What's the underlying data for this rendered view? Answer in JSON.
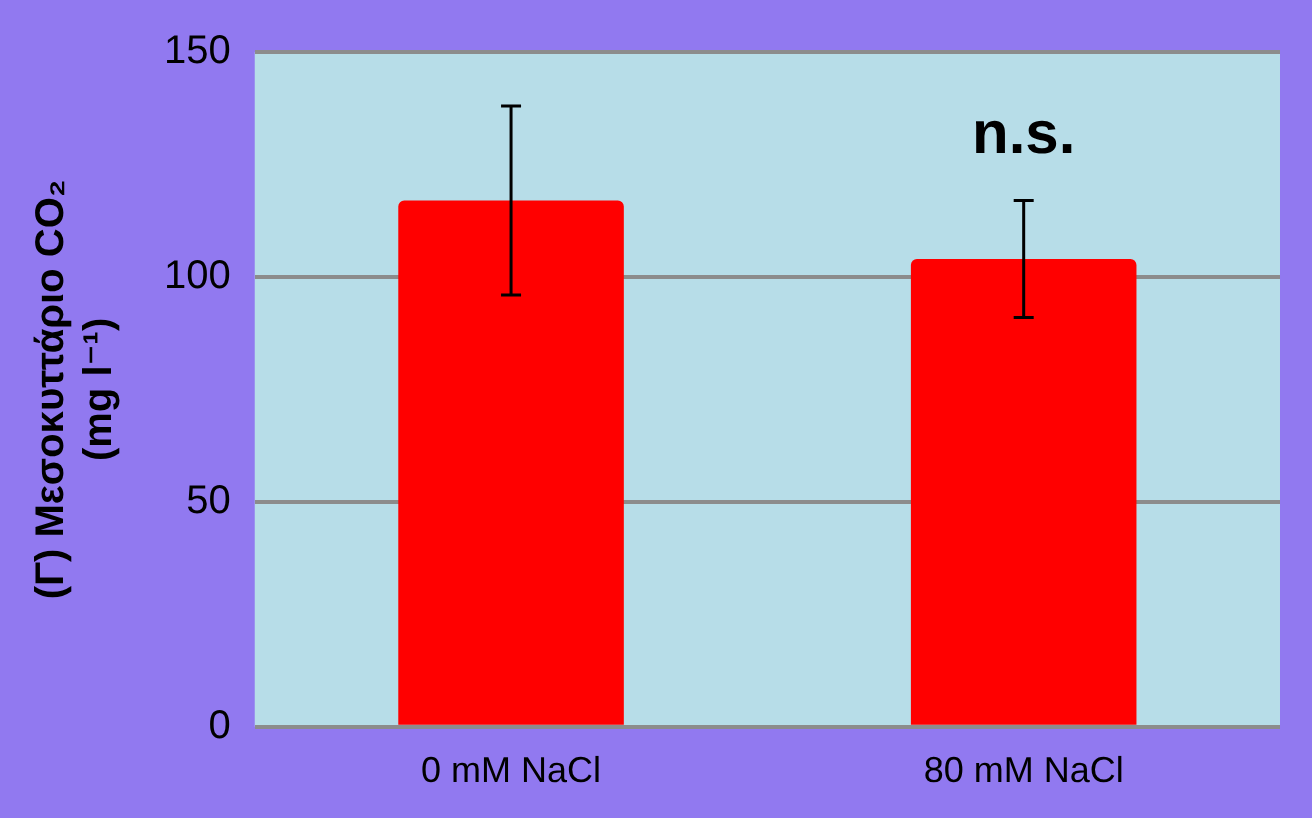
{
  "chart_data": {
    "type": "bar",
    "ylabel": "(Γ) Μεσοκυττάριο CO₂\n(mg l⁻¹)",
    "categories": [
      "0 mM NaCl",
      "80 mM NaCl"
    ],
    "values": [
      117,
      104
    ],
    "errors": [
      21,
      13
    ],
    "color": "#ff0000",
    "ylim": [
      0,
      150
    ],
    "yticks": [
      0,
      50,
      100,
      150
    ],
    "grid": "y",
    "legend": false,
    "annotations": [
      "n.s."
    ]
  }
}
